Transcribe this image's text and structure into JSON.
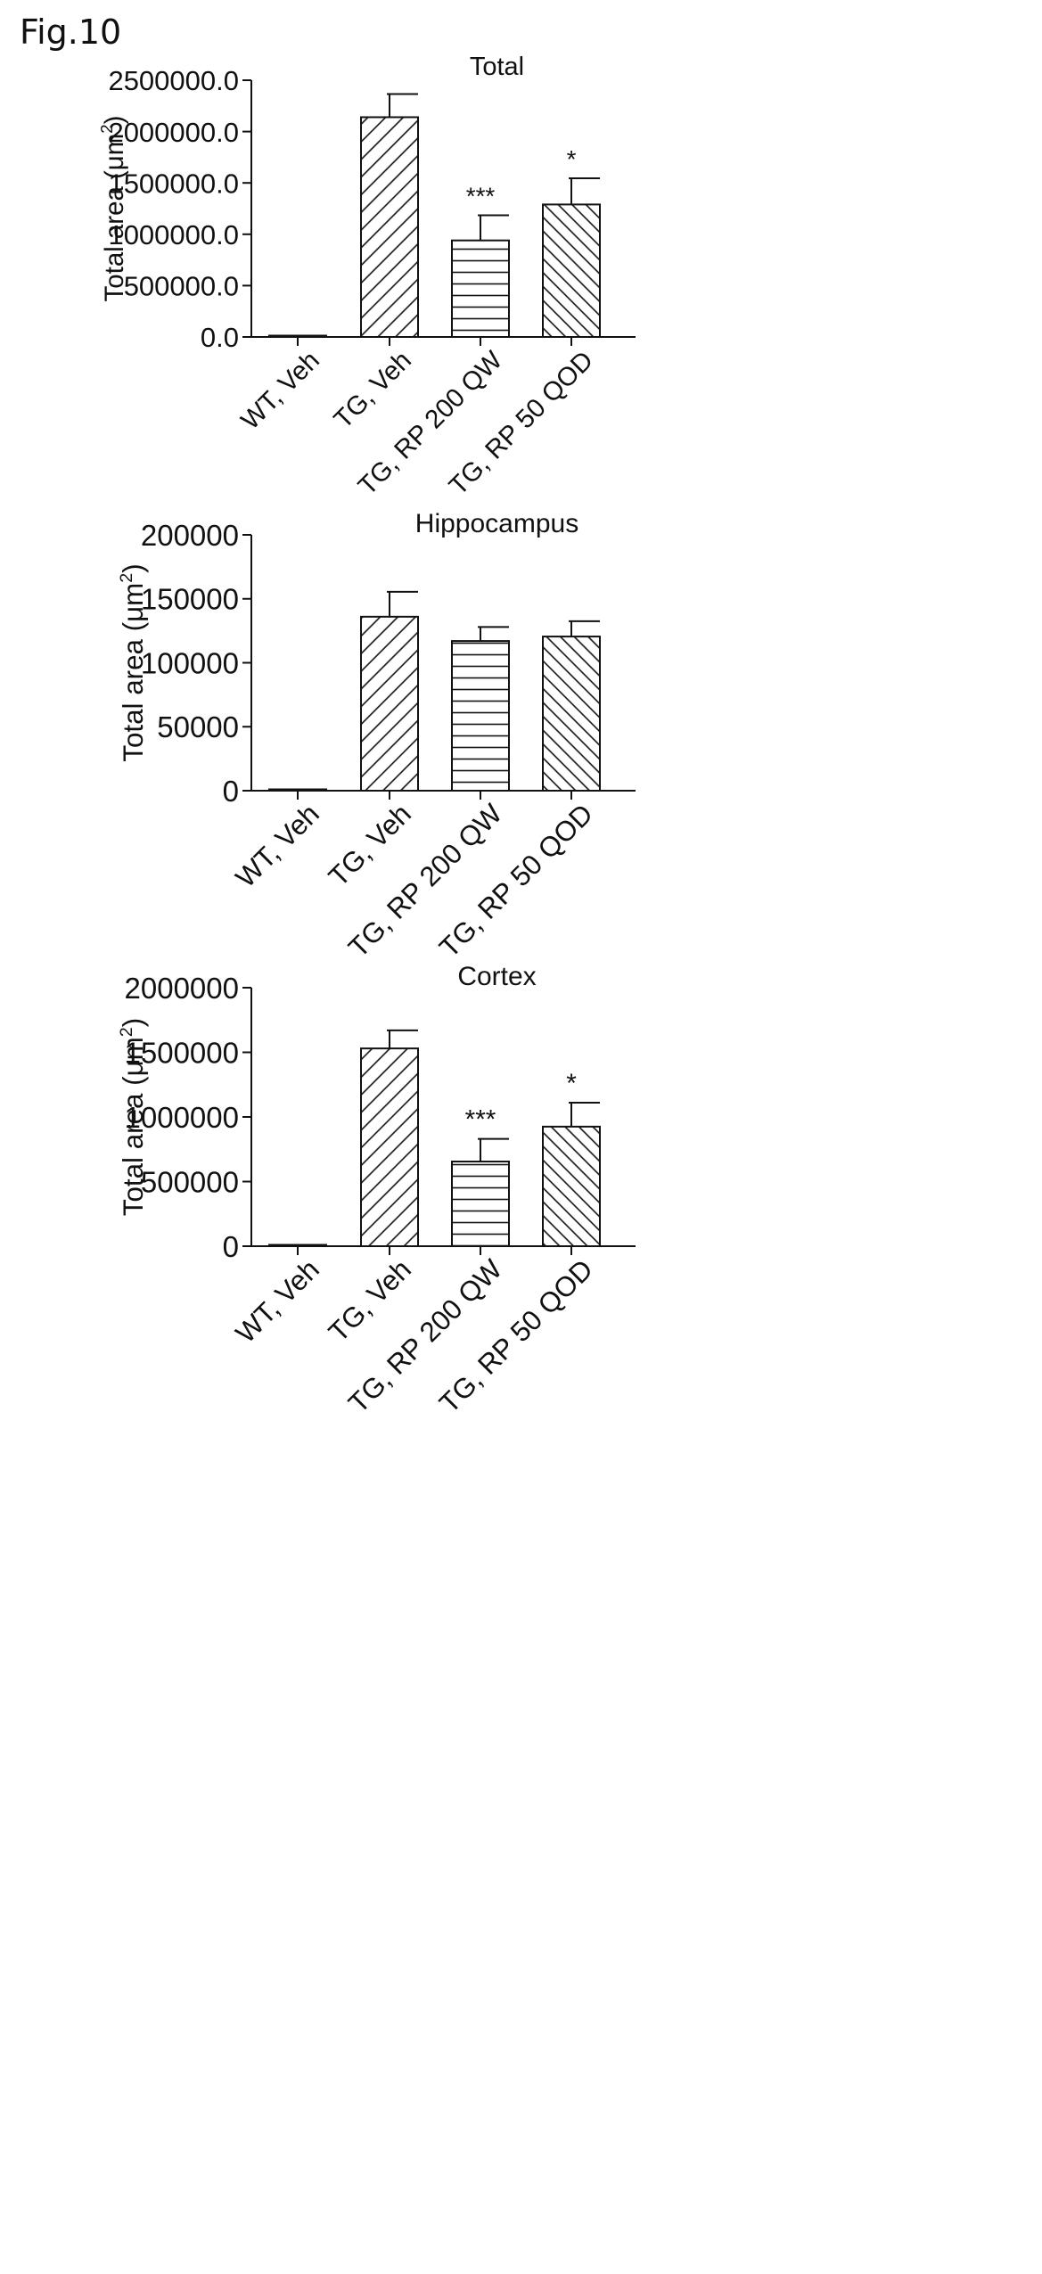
{
  "figure_label": "Fig.10",
  "chart_data": [
    {
      "type": "bar",
      "title": "Total",
      "ylabel_main": "Total area (μm",
      "ylabel_sup": "2",
      "ylabel_close": ")",
      "categories": [
        "WT, Veh",
        "TG, Veh",
        "TG, RP 200 QW",
        "TG, RP 50 QOD"
      ],
      "values": [
        10000,
        2140000,
        940000,
        1290000
      ],
      "errors": [
        0,
        225000,
        245000,
        255000
      ],
      "annotations": [
        "",
        "",
        "***",
        "*"
      ],
      "ylim": [
        0,
        2500000
      ],
      "yticks": [
        0,
        500000,
        1000000,
        1500000,
        2000000,
        2500000
      ],
      "ytick_labels": [
        "0.0",
        "500000.0",
        "1000000.0",
        "1500000.0",
        "2000000.0",
        "2500000.0"
      ],
      "patterns": [
        "solid",
        "diagonal-forward",
        "horizontal",
        "diagonal-back"
      ],
      "grid": false
    },
    {
      "type": "bar",
      "title": "Hippocampus",
      "ylabel_main": "Total area (μm",
      "ylabel_sup": "2",
      "ylabel_close": ")",
      "categories": [
        "WT, Veh",
        "TG, Veh",
        "TG, RP 200 QW",
        "TG, RP 50 QOD"
      ],
      "values": [
        1000,
        136000,
        117000,
        120500
      ],
      "errors": [
        0,
        19500,
        11000,
        12000
      ],
      "annotations": [
        "",
        "",
        "",
        ""
      ],
      "ylim": [
        0,
        200000
      ],
      "yticks": [
        0,
        50000,
        100000,
        150000,
        200000
      ],
      "ytick_labels": [
        "0",
        "50000",
        "100000",
        "150000",
        "200000"
      ],
      "patterns": [
        "solid",
        "diagonal-forward",
        "horizontal",
        "diagonal-back"
      ],
      "grid": false
    },
    {
      "type": "bar",
      "title": "Cortex",
      "ylabel_main": "Total area (μm",
      "ylabel_sup": "2",
      "ylabel_close": ")",
      "categories": [
        "WT, Veh",
        "TG, Veh",
        "TG, RP 200 QW",
        "TG, RP 50 QOD"
      ],
      "values": [
        10000,
        1530000,
        655000,
        925000
      ],
      "errors": [
        0,
        140000,
        175000,
        185000
      ],
      "annotations": [
        "",
        "",
        "***",
        "*"
      ],
      "ylim": [
        0,
        2000000
      ],
      "yticks": [
        0,
        500000,
        1000000,
        1500000,
        2000000
      ],
      "ytick_labels": [
        "0",
        "500000",
        "1000000",
        "1500000",
        "2000000"
      ],
      "patterns": [
        "solid",
        "diagonal-forward",
        "horizontal",
        "diagonal-back"
      ],
      "grid": false
    }
  ]
}
